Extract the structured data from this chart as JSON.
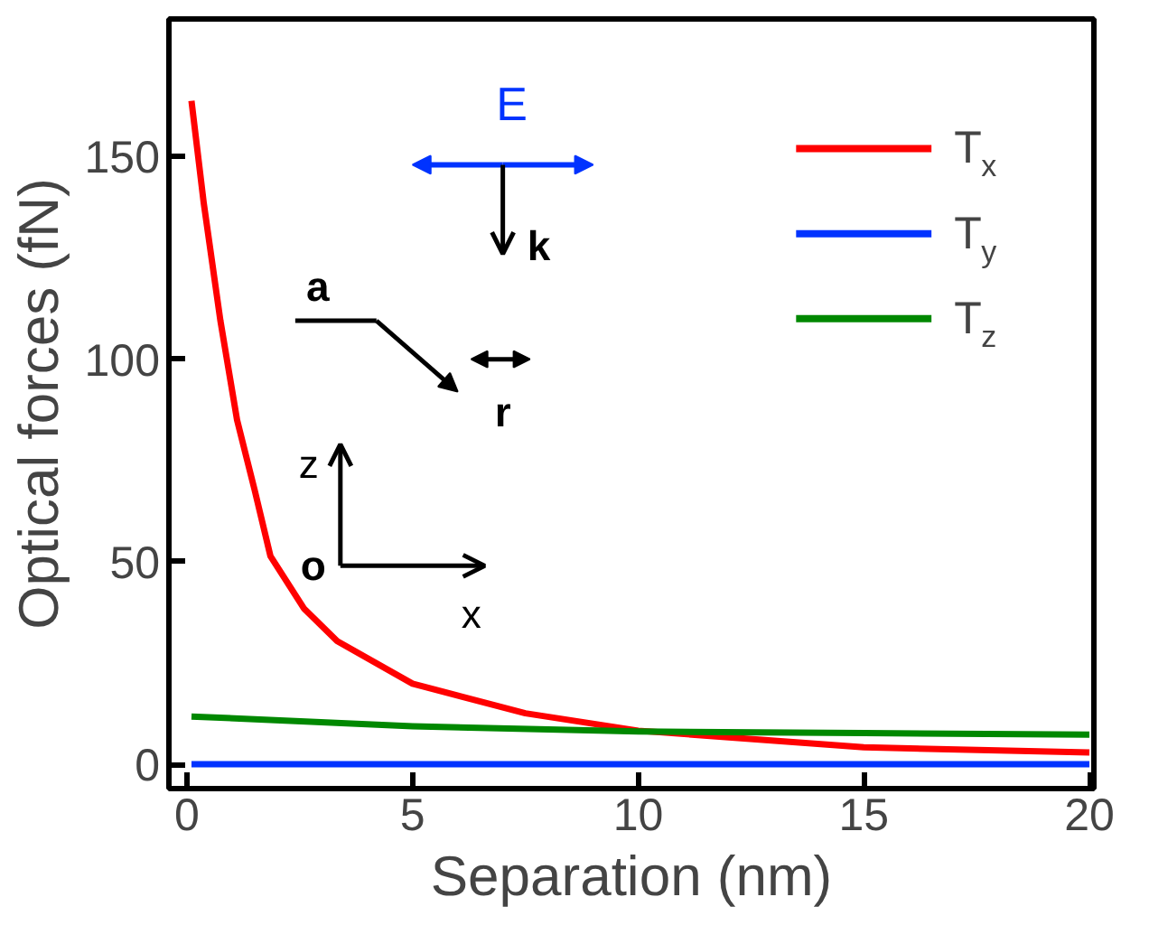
{
  "chart_data": {
    "type": "line",
    "xlabel": "Separation (nm)",
    "ylabel": "Optical forces (fN)",
    "xlim": [
      -0.4,
      20.1
    ],
    "ylim": [
      -6,
      184
    ],
    "xticks": [
      0,
      5,
      10,
      15,
      20
    ],
    "yticks": [
      0,
      50,
      100,
      150
    ],
    "grid": false,
    "legend": "top right",
    "line_style": "solid",
    "marker": "none",
    "series": [
      {
        "name": "T$_{x}$",
        "color": "#ff0000",
        "x": [
          0.1,
          0.37,
          0.74,
          1.11,
          1.5,
          1.85,
          2.59,
          3.33,
          5,
          7.5,
          10,
          15,
          20
        ],
        "values": [
          163.8,
          138.7,
          109.6,
          85,
          67.7,
          51.4,
          38.5,
          30.4,
          19.9,
          12.6,
          8.3,
          4.2,
          2.9
        ]
      },
      {
        "name": "T$_{y}$",
        "color": "#0033ff",
        "x": [
          0.1,
          5,
          10,
          15,
          20
        ],
        "values": [
          0,
          0,
          0,
          0,
          0
        ]
      },
      {
        "name": "T$_{z}$",
        "color": "#008800",
        "x": [
          0.1,
          5,
          10,
          15,
          20
        ],
        "values": [
          11.8,
          9.4,
          8.1,
          7.7,
          7.3
        ]
      }
    ],
    "annotations": [
      "E",
      "k",
      "a",
      "r",
      "z",
      "o",
      "x"
    ]
  }
}
